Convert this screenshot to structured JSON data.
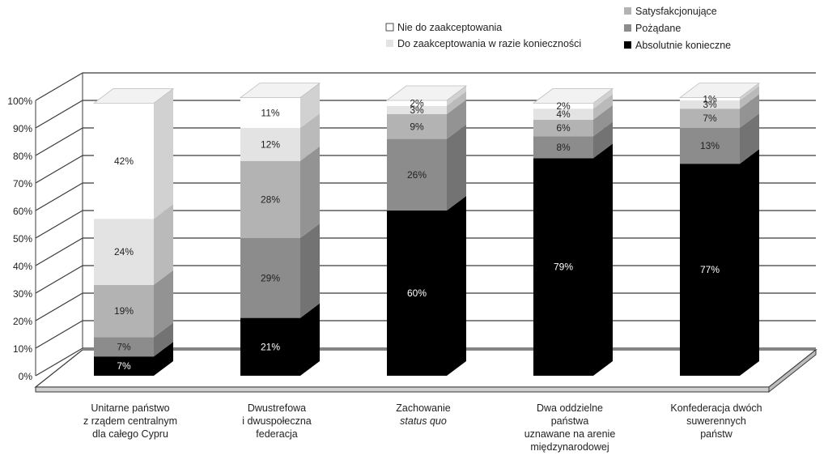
{
  "chart_data": {
    "type": "bar",
    "stacked": true,
    "percent": true,
    "three_d": true,
    "title": "",
    "xlabel": "",
    "ylabel": "",
    "ylim": [
      0,
      100
    ],
    "yticks": [
      "0%",
      "10%",
      "20%",
      "30%",
      "40%",
      "50%",
      "60%",
      "70%",
      "80%",
      "90%",
      "100%"
    ],
    "grid": true,
    "categories": [
      [
        "Unitarne państwo",
        "z rządem centralnym",
        "dla całego Cypru"
      ],
      [
        "Dwustrefowa",
        "i dwuspołeczna",
        "federacja"
      ],
      [
        "Zachowanie",
        "status quo"
      ],
      [
        "Dwa oddzielne",
        "państwa",
        "uznawane na arenie",
        "międzynarodowej"
      ],
      [
        "Konfederacja dwóch",
        "suwerennych",
        "państw"
      ]
    ],
    "italic_lines": [
      [],
      [],
      [
        1
      ],
      [],
      []
    ],
    "series": [
      {
        "name": "Absolutnie konieczne",
        "color": "#000000",
        "values": [
          7,
          21,
          60,
          79,
          77
        ]
      },
      {
        "name": "Pożądane",
        "color": "#8c8c8c",
        "values": [
          7,
          29,
          26,
          8,
          13
        ]
      },
      {
        "name": "Satysfakcjonujące",
        "color": "#b3b3b3",
        "values": [
          19,
          28,
          9,
          6,
          7
        ]
      },
      {
        "name": "Do zaakceptowania w razie konieczności",
        "color": "#e3e3e3",
        "values": [
          24,
          12,
          3,
          4,
          3
        ]
      },
      {
        "name": "Nie do zaakceptowania",
        "color": "#ffffff",
        "values": [
          42,
          11,
          2,
          2,
          1
        ]
      }
    ],
    "legend": {
      "position": "top",
      "left_column": [
        "Nie do zaakceptowania",
        "Do zaakceptowania w razie konieczności"
      ],
      "right_column": [
        "Satysfakcjonujące",
        "Pożądane",
        "Absolutnie konieczne"
      ]
    }
  }
}
